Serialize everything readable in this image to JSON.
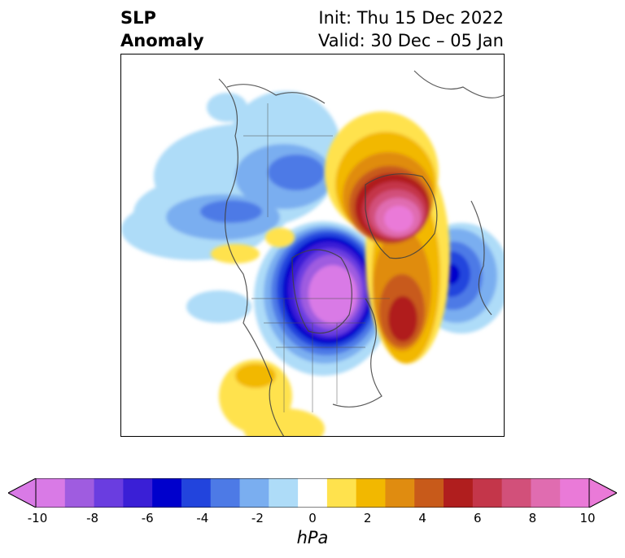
{
  "title": {
    "left_line1": "SLP",
    "left_line2": "Anomaly",
    "right_line1": "Init: Thu 15 Dec 2022",
    "right_line2": "Valid: 30 Dec – 05 Jan"
  },
  "colorbar": {
    "unit": "hPa",
    "tick_labels": [
      "-10",
      "-8",
      "-6",
      "-4",
      "-2",
      "0",
      "2",
      "4",
      "6",
      "8",
      "10"
    ],
    "colors": [
      "#d97ae6",
      "#9f5ce0",
      "#6a3de0",
      "#3a1fd6",
      "#0000cc",
      "#2244dd",
      "#4d7ae6",
      "#7aaef0",
      "#aedcf8",
      "#ffffff",
      "#ffe24d",
      "#f2b800",
      "#e08c10",
      "#c85a1a",
      "#b01e1e",
      "#c4364a",
      "#d2507a",
      "#e06cb0",
      "#ea7ad8"
    ],
    "under_color": "#d97ae6",
    "over_color": "#ea7ad8"
  }
}
